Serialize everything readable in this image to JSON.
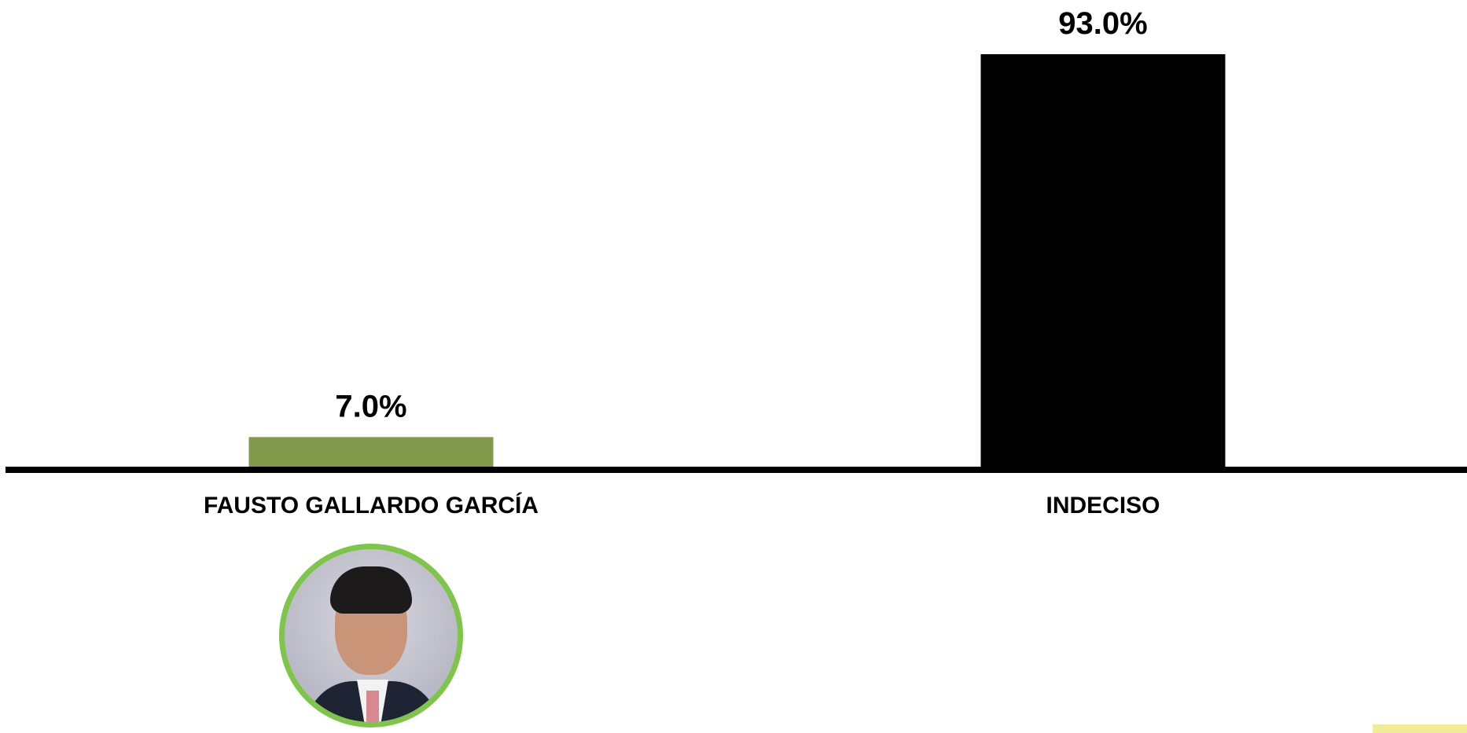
{
  "chart_data": {
    "type": "bar",
    "categories": [
      "FAUSTO GALLARDO GARCÍA",
      "INDECISO"
    ],
    "values": [
      7.0,
      93.0
    ],
    "value_labels": [
      "7.0%",
      "93.0%"
    ],
    "colors": [
      "#80994a",
      "#000000"
    ],
    "title": "",
    "xlabel": "",
    "ylabel": "",
    "ylim": [
      0,
      100
    ],
    "grid": false,
    "legend": "none"
  },
  "candidate_photo": {
    "category": "FAUSTO GALLARDO GARCÍA",
    "border_color": "#7dc64a"
  },
  "accent_colors": {
    "baseline": "#000000",
    "corner_swatch": "#f1ec97"
  }
}
